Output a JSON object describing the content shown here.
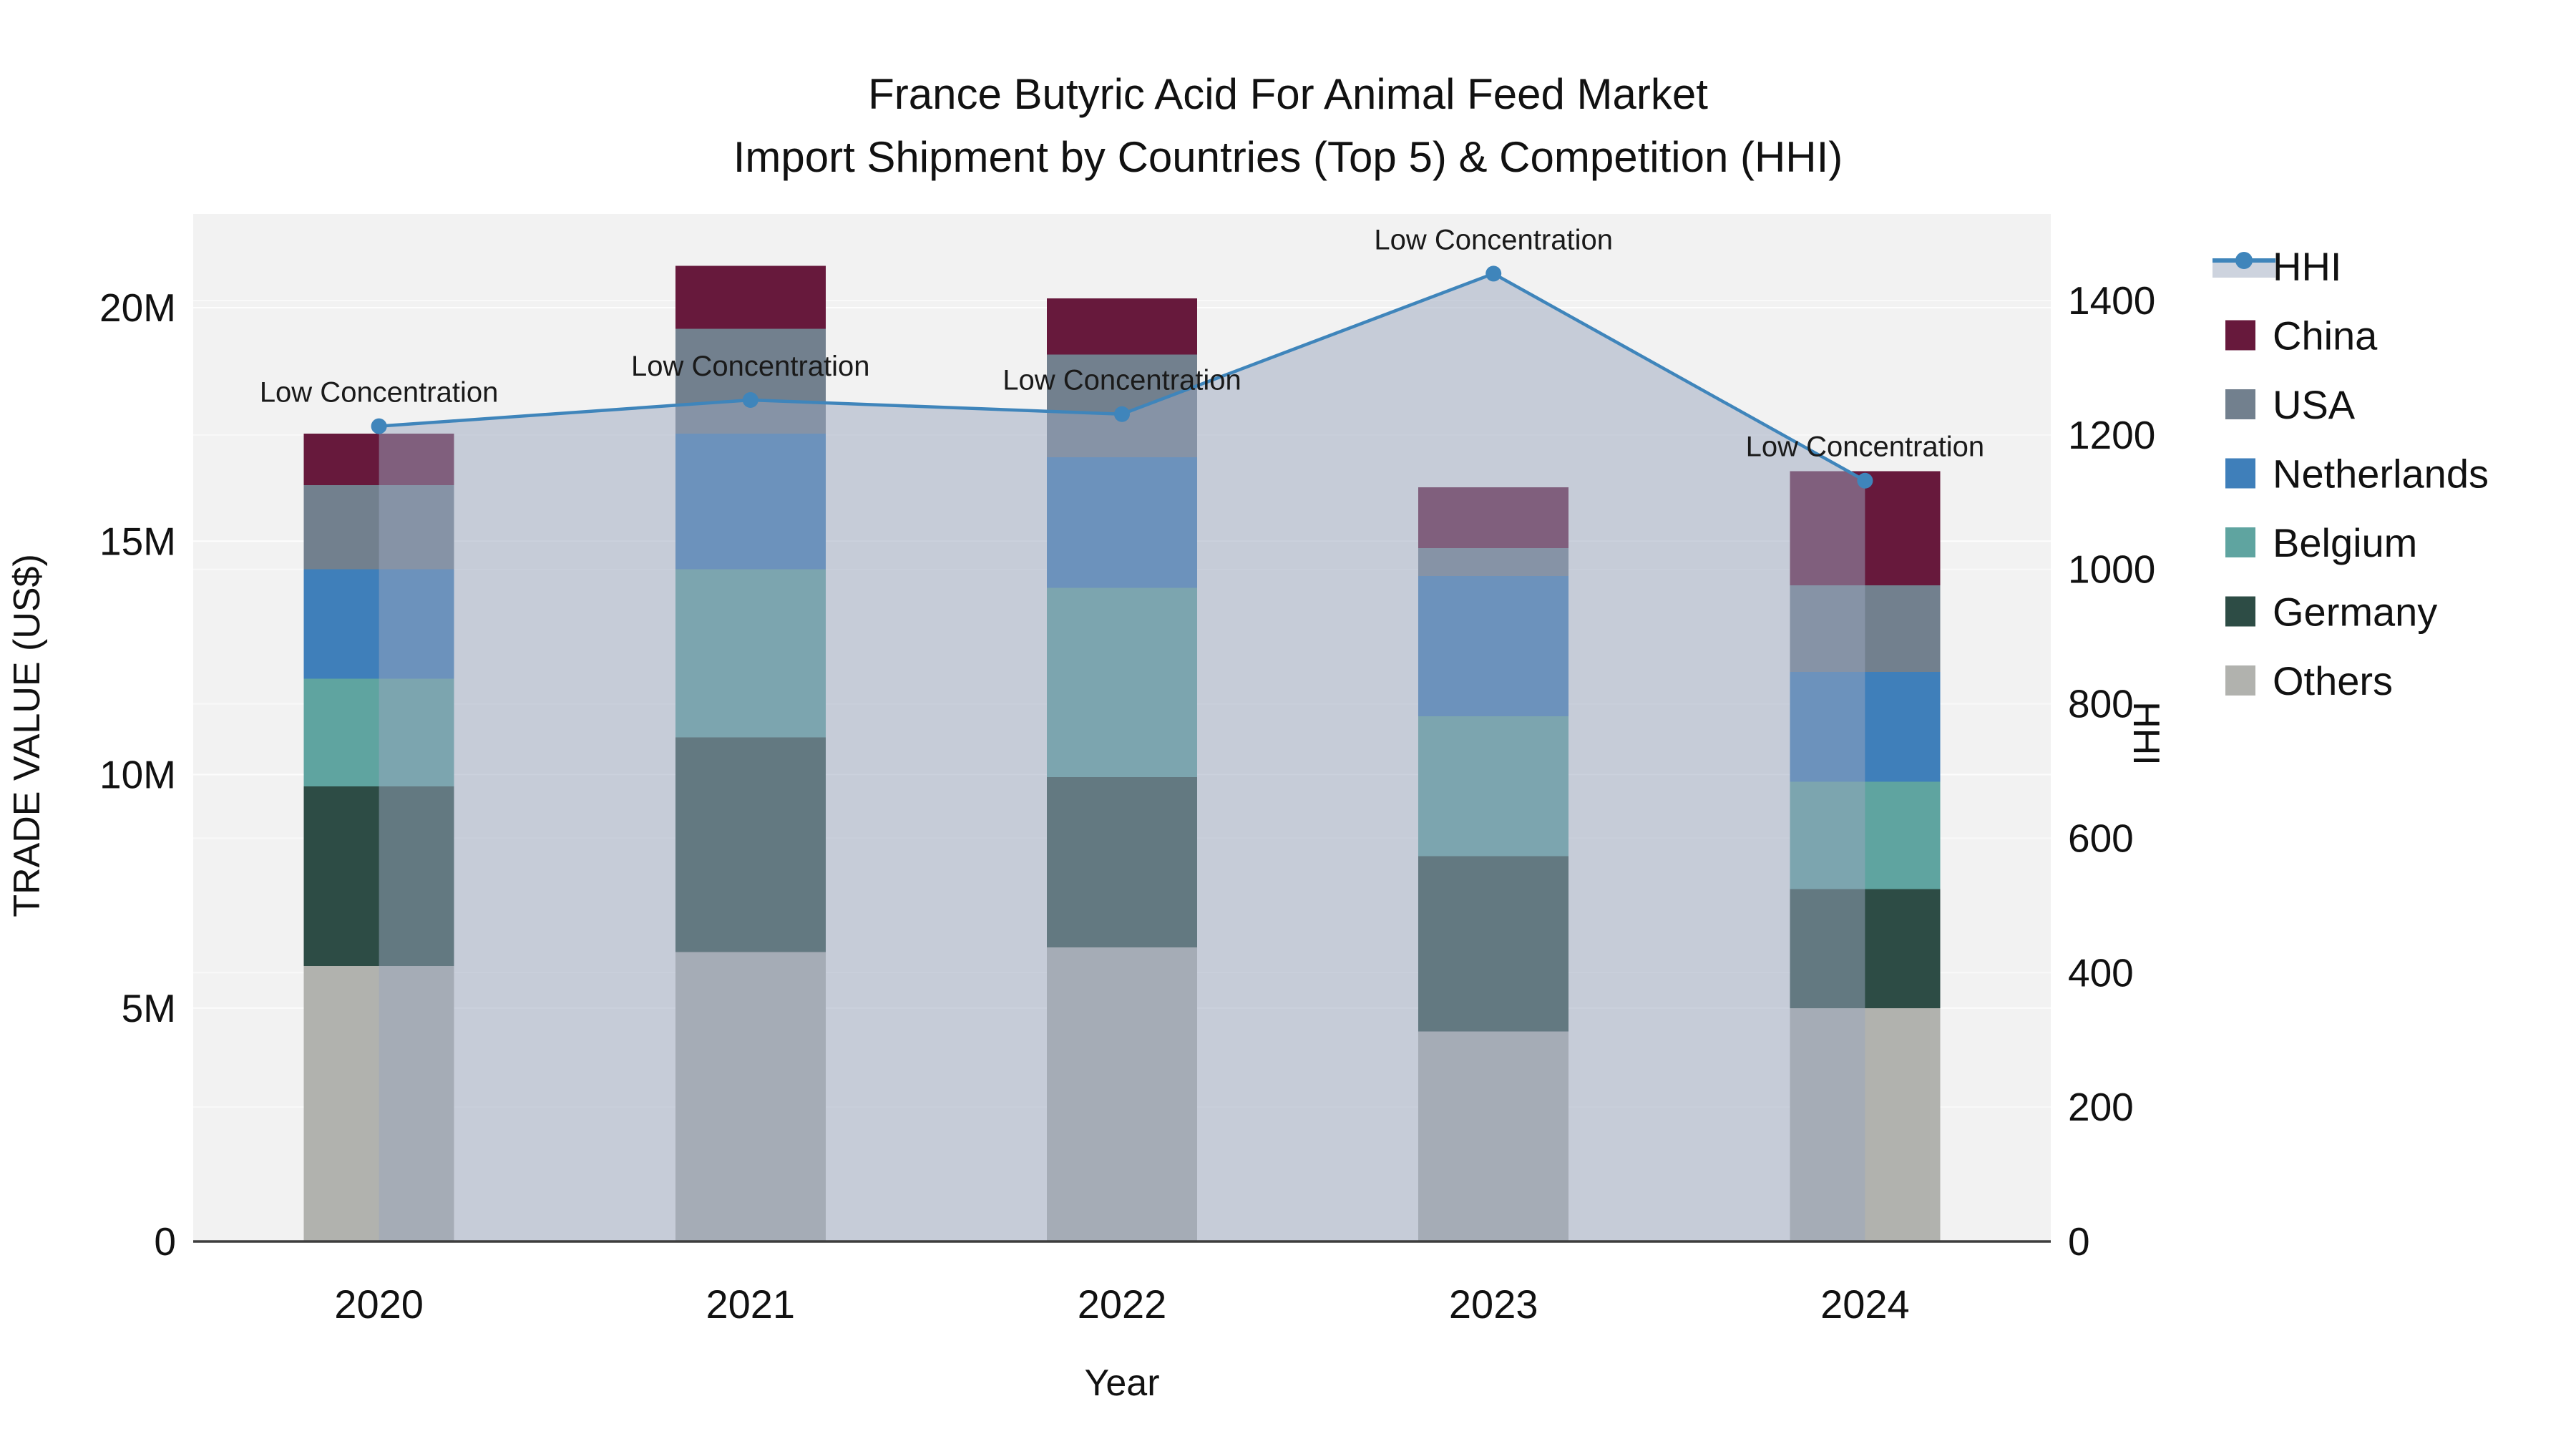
{
  "title": {
    "line1": "France Butyric Acid For Animal Feed Market",
    "line2": "Import Shipment by Countries (Top 5) & Competition (HHI)"
  },
  "axes": {
    "x_title": "Year",
    "y_left_title": "TRADE VALUE (US$)",
    "y_right_title": "HHI"
  },
  "annotation_text": "Low Concentration",
  "colors": {
    "hhi_line": "#3f85bb",
    "hhi_area": "rgba(154,166,190,0.5)",
    "hhi_area_swatch": "#cdd3de",
    "plot_background": "#f2f2f2",
    "gridline": "#ffffff",
    "axis_line": "#3d3d3d"
  },
  "legend": {
    "position": "right",
    "entries": [
      "HHI",
      "China",
      "USA",
      "Netherlands",
      "Belgium",
      "Germany",
      "Others"
    ]
  },
  "chart_data": {
    "type": "combo",
    "bar_mode": "stacked",
    "x": [
      "2020",
      "2021",
      "2022",
      "2023",
      "2024"
    ],
    "bar_value_unit": "US$ millions",
    "series": [
      {
        "name": "Others",
        "type": "bar",
        "color": "#b1b2ae",
        "values": [
          5.9,
          6.2,
          6.3,
          4.5,
          5.0
        ]
      },
      {
        "name": "Germany",
        "type": "bar",
        "color": "#2d4c45",
        "values": [
          3.85,
          4.6,
          3.65,
          3.75,
          2.55
        ]
      },
      {
        "name": "Belgium",
        "type": "bar",
        "color": "#5fa4a0",
        "values": [
          2.3,
          3.6,
          4.05,
          3.0,
          2.3
        ]
      },
      {
        "name": "Netherlands",
        "type": "bar",
        "color": "#3f7fba",
        "values": [
          2.35,
          2.9,
          2.8,
          3.0,
          2.35
        ]
      },
      {
        "name": "USA",
        "type": "bar",
        "color": "#72808e",
        "values": [
          1.8,
          2.25,
          2.2,
          0.6,
          1.85
        ]
      },
      {
        "name": "China",
        "type": "bar",
        "color": "#67193c",
        "values": [
          1.1,
          1.35,
          1.2,
          1.3,
          2.45
        ]
      },
      {
        "name": "HHI",
        "type": "line",
        "axis": "right",
        "color": "#3f85bb",
        "area_color": "rgba(154,166,190,0.5)",
        "values": [
          1213,
          1252,
          1231,
          1440,
          1132
        ]
      }
    ],
    "bar_totals_musd": [
      17.3,
      20.9,
      20.2,
      16.15,
      16.5
    ],
    "y_left": {
      "title": "TRADE VALUE (US$)",
      "tick_values": [
        0,
        5,
        10,
        15,
        20
      ],
      "tick_labels": [
        "0",
        "5M",
        "10M",
        "15M",
        "20M"
      ],
      "range_musd": [
        0,
        22
      ]
    },
    "y_right": {
      "title": "HHI",
      "tick_values": [
        0,
        200,
        400,
        600,
        800,
        1000,
        1200,
        1400
      ],
      "tick_labels": [
        "0",
        "200",
        "400",
        "600",
        "800",
        "1000",
        "1200",
        "1400"
      ],
      "range": [
        0,
        1530
      ]
    },
    "annotations": [
      {
        "x": "2020",
        "text": "Low Concentration"
      },
      {
        "x": "2021",
        "text": "Low Concentration"
      },
      {
        "x": "2022",
        "text": "Low Concentration"
      },
      {
        "x": "2023",
        "text": "Low Concentration"
      },
      {
        "x": "2024",
        "text": "Low Concentration"
      }
    ],
    "legend_position": "right",
    "grid": true
  }
}
